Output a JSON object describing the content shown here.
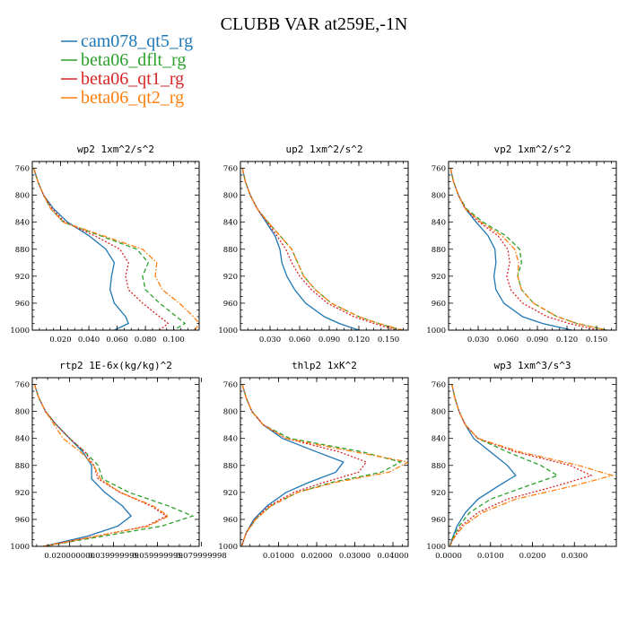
{
  "figure": {
    "title": "CLUBB VAR at259E,-1N"
  },
  "legend": [
    {
      "name": "cam078_qt5_rg",
      "color": "#1f77b4",
      "dash": "solid"
    },
    {
      "name": "beta06_dflt_rg",
      "color": "#2ca02c",
      "dash": "dashed"
    },
    {
      "name": "beta06_qt1_rg",
      "color": "#d62728",
      "dash": "dotted"
    },
    {
      "name": "beta06_qt2_rg",
      "color": "#ff7f0e",
      "dash": "dashdot"
    }
  ],
  "chart_data": [
    {
      "type": "line",
      "title": "wp2 1xm^2/s^2",
      "ylim": [
        1000,
        750
      ],
      "xlim": [
        0.0,
        0.118
      ],
      "yticks": [
        "760",
        "800",
        "840",
        "880",
        "920",
        "960",
        "1000"
      ],
      "yticks_values": [
        760,
        800,
        840,
        880,
        920,
        960,
        1000
      ],
      "xticks": [
        "0.020",
        "0.040",
        "0.060",
        "0.080",
        "0.100"
      ],
      "xticks_values": [
        0.02,
        0.04,
        0.06,
        0.08,
        0.1
      ],
      "y": [
        760,
        780,
        800,
        820,
        840,
        860,
        880,
        900,
        920,
        940,
        960,
        980,
        990,
        1000
      ],
      "series": [
        {
          "name": "cam078_qt5_rg",
          "values": [
            0.001,
            0.004,
            0.008,
            0.015,
            0.025,
            0.04,
            0.052,
            0.058,
            0.056,
            0.055,
            0.058,
            0.066,
            0.068,
            0.058
          ]
        },
        {
          "name": "beta06_dflt_rg",
          "values": [
            0.001,
            0.004,
            0.008,
            0.013,
            0.022,
            0.048,
            0.074,
            0.082,
            0.078,
            0.08,
            0.09,
            0.102,
            0.108,
            0.1
          ]
        },
        {
          "name": "beta06_qt1_rg",
          "values": [
            0.001,
            0.004,
            0.008,
            0.014,
            0.023,
            0.044,
            0.062,
            0.068,
            0.066,
            0.068,
            0.078,
            0.09,
            0.096,
            0.09
          ]
        },
        {
          "name": "beta06_qt2_rg",
          "values": [
            0.001,
            0.004,
            0.008,
            0.013,
            0.022,
            0.05,
            0.078,
            0.088,
            0.087,
            0.092,
            0.104,
            0.114,
            0.118,
            0.115
          ]
        }
      ]
    },
    {
      "type": "line",
      "title": "up2 1xm^2/s^2",
      "ylim": [
        1000,
        750
      ],
      "xlim": [
        0.0,
        0.17
      ],
      "yticks": [
        "760",
        "800",
        "840",
        "880",
        "920",
        "960",
        "1000"
      ],
      "yticks_values": [
        760,
        800,
        840,
        880,
        920,
        960,
        1000
      ],
      "xticks": [
        "0.030",
        "0.060",
        "0.090",
        "0.120",
        "0.150"
      ],
      "xticks_values": [
        0.03,
        0.06,
        0.09,
        0.12,
        0.15
      ],
      "y": [
        760,
        780,
        800,
        820,
        840,
        860,
        880,
        900,
        920,
        940,
        960,
        980,
        990,
        1000
      ],
      "series": [
        {
          "name": "cam078_qt5_rg",
          "values": [
            0.002,
            0.005,
            0.01,
            0.017,
            0.026,
            0.035,
            0.04,
            0.042,
            0.047,
            0.055,
            0.066,
            0.085,
            0.1,
            0.12
          ]
        },
        {
          "name": "beta06_dflt_rg",
          "values": [
            0.002,
            0.005,
            0.01,
            0.017,
            0.028,
            0.04,
            0.052,
            0.058,
            0.064,
            0.076,
            0.092,
            0.12,
            0.14,
            0.162
          ]
        },
        {
          "name": "beta06_qt1_rg",
          "values": [
            0.002,
            0.005,
            0.01,
            0.017,
            0.027,
            0.037,
            0.046,
            0.052,
            0.06,
            0.072,
            0.088,
            0.115,
            0.135,
            0.158
          ]
        },
        {
          "name": "beta06_qt2_rg",
          "values": [
            0.002,
            0.005,
            0.01,
            0.017,
            0.028,
            0.04,
            0.052,
            0.058,
            0.064,
            0.076,
            0.092,
            0.12,
            0.14,
            0.165
          ]
        }
      ]
    },
    {
      "type": "line",
      "title": "vp2 1xm^2/s^2",
      "ylim": [
        1000,
        750
      ],
      "xlim": [
        0.0,
        0.17
      ],
      "yticks": [
        "760",
        "800",
        "840",
        "880",
        "920",
        "960",
        "1000"
      ],
      "yticks_values": [
        760,
        800,
        840,
        880,
        920,
        960,
        1000
      ],
      "xticks": [
        "0.030",
        "0.060",
        "0.090",
        "0.120",
        "0.150"
      ],
      "xticks_values": [
        0.03,
        0.06,
        0.09,
        0.12,
        0.15
      ],
      "y": [
        760,
        780,
        800,
        820,
        840,
        860,
        880,
        900,
        920,
        940,
        960,
        980,
        990,
        1000
      ],
      "series": [
        {
          "name": "cam078_qt5_rg",
          "values": [
            0.002,
            0.005,
            0.01,
            0.017,
            0.028,
            0.04,
            0.047,
            0.048,
            0.046,
            0.048,
            0.056,
            0.075,
            0.095,
            0.125
          ]
        },
        {
          "name": "beta06_dflt_rg",
          "values": [
            0.002,
            0.005,
            0.01,
            0.018,
            0.035,
            0.058,
            0.072,
            0.074,
            0.07,
            0.074,
            0.086,
            0.11,
            0.13,
            0.16
          ]
        },
        {
          "name": "beta06_qt1_rg",
          "values": [
            0.002,
            0.005,
            0.01,
            0.017,
            0.031,
            0.05,
            0.06,
            0.062,
            0.059,
            0.063,
            0.075,
            0.1,
            0.122,
            0.152
          ]
        },
        {
          "name": "beta06_qt2_rg",
          "values": [
            0.002,
            0.005,
            0.01,
            0.017,
            0.033,
            0.054,
            0.067,
            0.071,
            0.07,
            0.074,
            0.086,
            0.11,
            0.13,
            0.16
          ]
        }
      ]
    },
    {
      "type": "line",
      "title": "rtp2 1E-6x(kg/kg)^2",
      "ylim": [
        1000,
        750
      ],
      "xlim": [
        0.003,
        0.079
      ],
      "yticks": [
        "760",
        "800",
        "840",
        "880",
        "920",
        "960",
        "1000"
      ],
      "yticks_values": [
        760,
        800,
        840,
        880,
        920,
        960,
        1000
      ],
      "xticks": [
        "0.020000000",
        "0.039999999",
        "0.059999999",
        "0.079999998"
      ],
      "xticks_values": [
        0.02,
        0.04,
        0.06,
        0.08
      ],
      "y": [
        760,
        780,
        800,
        820,
        840,
        860,
        880,
        900,
        920,
        940,
        955,
        970,
        985,
        1000
      ],
      "series": [
        {
          "name": "cam078_qt5_rg",
          "values": [
            0.004,
            0.006,
            0.009,
            0.014,
            0.02,
            0.026,
            0.03,
            0.03,
            0.036,
            0.044,
            0.048,
            0.042,
            0.028,
            0.008
          ]
        },
        {
          "name": "beta06_dflt_rg",
          "values": [
            0.004,
            0.006,
            0.009,
            0.014,
            0.02,
            0.027,
            0.033,
            0.035,
            0.047,
            0.065,
            0.076,
            0.062,
            0.035,
            0.008
          ]
        },
        {
          "name": "beta06_qt1_rg",
          "values": [
            0.004,
            0.006,
            0.009,
            0.014,
            0.02,
            0.027,
            0.031,
            0.033,
            0.043,
            0.057,
            0.064,
            0.055,
            0.032,
            0.008
          ]
        },
        {
          "name": "beta06_qt2_rg",
          "values": [
            0.004,
            0.006,
            0.009,
            0.013,
            0.017,
            0.025,
            0.031,
            0.034,
            0.043,
            0.058,
            0.065,
            0.056,
            0.032,
            0.008
          ]
        }
      ]
    },
    {
      "type": "line",
      "title": "thlp2 1xK^2",
      "ylim": [
        1000,
        750
      ],
      "xlim": [
        0.0,
        0.044
      ],
      "yticks": [
        "760",
        "800",
        "840",
        "880",
        "920",
        "960",
        "1000"
      ],
      "yticks_values": [
        760,
        800,
        840,
        880,
        920,
        960,
        1000
      ],
      "xticks": [
        "0.01000",
        "0.02000",
        "0.03000",
        "0.04000"
      ],
      "xticks_values": [
        0.01,
        0.02,
        0.03,
        0.04
      ],
      "y": [
        760,
        780,
        800,
        820,
        840,
        860,
        875,
        890,
        905,
        920,
        940,
        960,
        980,
        1000
      ],
      "series": [
        {
          "name": "cam078_qt5_rg",
          "values": [
            0.0005,
            0.0015,
            0.003,
            0.006,
            0.011,
            0.02,
            0.027,
            0.025,
            0.018,
            0.012,
            0.007,
            0.0035,
            0.0015,
            0.0003
          ]
        },
        {
          "name": "beta06_dflt_rg",
          "values": [
            0.0005,
            0.0015,
            0.003,
            0.006,
            0.013,
            0.032,
            0.042,
            0.037,
            0.024,
            0.015,
            0.008,
            0.004,
            0.0015,
            0.0003
          ]
        },
        {
          "name": "beta06_qt1_rg",
          "values": [
            0.0005,
            0.0015,
            0.003,
            0.006,
            0.012,
            0.026,
            0.033,
            0.031,
            0.022,
            0.014,
            0.0075,
            0.0038,
            0.0015,
            0.0003
          ]
        },
        {
          "name": "beta06_qt2_rg",
          "values": [
            0.0005,
            0.0015,
            0.003,
            0.006,
            0.012,
            0.03,
            0.044,
            0.039,
            0.025,
            0.015,
            0.008,
            0.004,
            0.0015,
            0.0003
          ]
        }
      ]
    },
    {
      "type": "line",
      "title": "wp3 1xm^3/s^3",
      "ylim": [
        1000,
        750
      ],
      "xlim": [
        0.0,
        0.04
      ],
      "yticks": [
        "760",
        "800",
        "840",
        "880",
        "920",
        "960",
        "1000"
      ],
      "yticks_values": [
        760,
        800,
        840,
        880,
        920,
        960,
        1000
      ],
      "xticks": [
        "0.0000",
        "0.0100",
        "0.0200",
        "0.0300"
      ],
      "xticks_values": [
        0.0,
        0.01,
        0.02,
        0.03
      ],
      "y": [
        760,
        780,
        800,
        820,
        840,
        860,
        880,
        895,
        910,
        930,
        950,
        970,
        990,
        1000
      ],
      "series": [
        {
          "name": "cam078_qt5_rg",
          "values": [
            0.0008,
            0.0015,
            0.0025,
            0.004,
            0.006,
            0.01,
            0.014,
            0.016,
            0.012,
            0.007,
            0.004,
            0.002,
            0.0008,
            0.0003
          ]
        },
        {
          "name": "beta06_dflt_rg",
          "values": [
            0.0008,
            0.0015,
            0.0025,
            0.004,
            0.007,
            0.014,
            0.022,
            0.026,
            0.019,
            0.01,
            0.005,
            0.0025,
            0.0008,
            0.0003
          ]
        },
        {
          "name": "beta06_qt1_rg",
          "values": [
            0.0008,
            0.0015,
            0.0025,
            0.004,
            0.007,
            0.016,
            0.029,
            0.034,
            0.026,
            0.014,
            0.007,
            0.003,
            0.001,
            0.0003
          ]
        },
        {
          "name": "beta06_qt2_rg",
          "values": [
            0.0008,
            0.0015,
            0.0025,
            0.004,
            0.007,
            0.017,
            0.031,
            0.039,
            0.03,
            0.016,
            0.008,
            0.0035,
            0.001,
            0.0003
          ]
        }
      ]
    }
  ]
}
